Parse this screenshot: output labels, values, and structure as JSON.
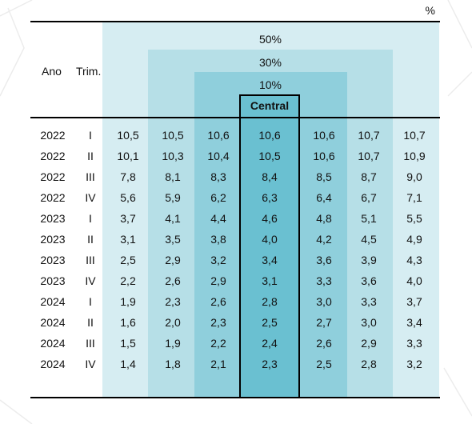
{
  "table": {
    "unit": "%",
    "header": {
      "year": "Ano",
      "quarter": "Trim.",
      "band_50": "50%",
      "band_30": "30%",
      "band_10": "10%",
      "central": "Central"
    },
    "rows": [
      {
        "year": "2022",
        "q": "I",
        "values": [
          "10,5",
          "10,5",
          "10,6",
          "10,6",
          "10,6",
          "10,7",
          "10,7"
        ]
      },
      {
        "year": "2022",
        "q": "II",
        "values": [
          "10,1",
          "10,3",
          "10,4",
          "10,5",
          "10,6",
          "10,7",
          "10,9"
        ]
      },
      {
        "year": "2022",
        "q": "III",
        "values": [
          "7,8",
          "8,1",
          "8,3",
          "8,4",
          "8,5",
          "8,7",
          "9,0"
        ]
      },
      {
        "year": "2022",
        "q": "IV",
        "values": [
          "5,6",
          "5,9",
          "6,2",
          "6,3",
          "6,4",
          "6,7",
          "7,1"
        ]
      },
      {
        "year": "2023",
        "q": "I",
        "values": [
          "3,7",
          "4,1",
          "4,4",
          "4,6",
          "4,8",
          "5,1",
          "5,5"
        ]
      },
      {
        "year": "2023",
        "q": "II",
        "values": [
          "3,1",
          "3,5",
          "3,8",
          "4,0",
          "4,2",
          "4,5",
          "4,9"
        ]
      },
      {
        "year": "2023",
        "q": "III",
        "values": [
          "2,5",
          "2,9",
          "3,2",
          "3,4",
          "3,6",
          "3,9",
          "4,3"
        ]
      },
      {
        "year": "2023",
        "q": "IV",
        "values": [
          "2,2",
          "2,6",
          "2,9",
          "3,1",
          "3,3",
          "3,6",
          "4,0"
        ]
      },
      {
        "year": "2024",
        "q": "I",
        "values": [
          "1,9",
          "2,3",
          "2,6",
          "2,8",
          "3,0",
          "3,3",
          "3,7"
        ]
      },
      {
        "year": "2024",
        "q": "II",
        "values": [
          "1,6",
          "2,0",
          "2,3",
          "2,5",
          "2,7",
          "3,0",
          "3,4"
        ]
      },
      {
        "year": "2024",
        "q": "III",
        "values": [
          "1,5",
          "1,9",
          "2,2",
          "2,4",
          "2,6",
          "2,9",
          "3,3"
        ]
      },
      {
        "year": "2024",
        "q": "IV",
        "values": [
          "1,4",
          "1,8",
          "2,1",
          "2,3",
          "2,5",
          "2,8",
          "3,2"
        ]
      }
    ]
  },
  "colors": {
    "band_50": "#d6edf2",
    "band_30": "#b6dfe7",
    "band_10": "#8fcfdc",
    "central": "#6ac0d1"
  }
}
